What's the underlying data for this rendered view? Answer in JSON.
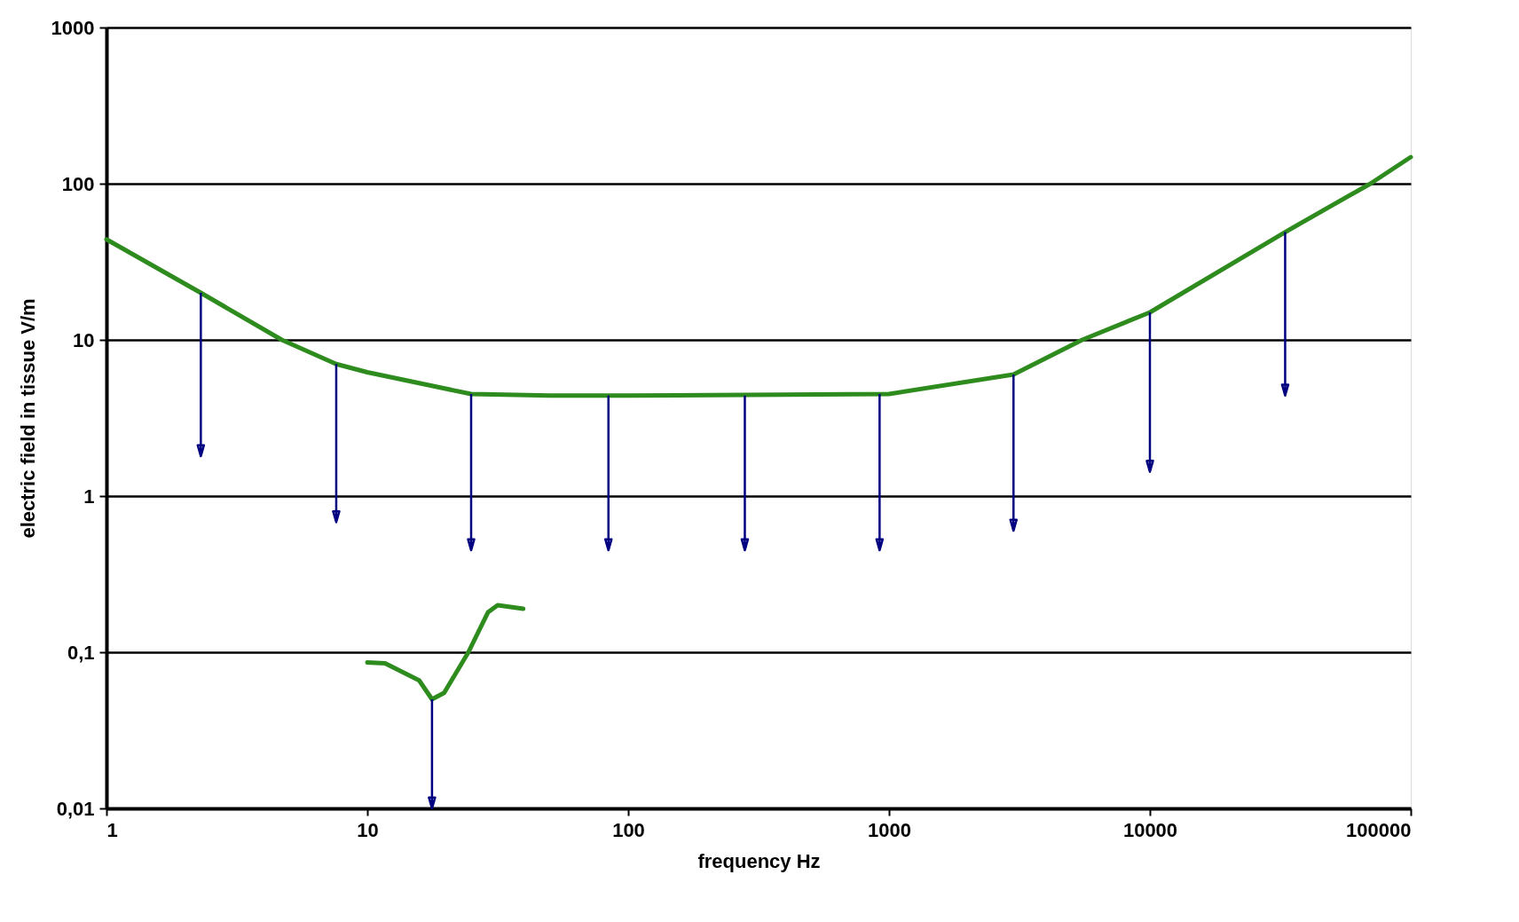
{
  "chart_data": {
    "type": "line",
    "xlabel": "frequency Hz",
    "ylabel": "electric field in tissue V/m",
    "log": "xy",
    "grid": "y",
    "xlim": [
      1,
      100000
    ],
    "xticks": [
      1,
      10,
      100,
      {
        "value": 1000,
        "label": "1000"
      },
      {
        "value": 10000,
        "label": "10000"
      },
      {
        "value": 100000,
        "label": "100000"
      }
    ],
    "ylim": [
      0.01,
      1000
    ],
    "yticks": [
      {
        "value": 0.01,
        "label": "0,01"
      },
      {
        "value": 0.1,
        "label": "0,1"
      },
      1,
      10,
      100,
      {
        "value": 1000,
        "label": "1000"
      }
    ],
    "series": [
      {
        "color": "#2e8b1e",
        "x": [
          1,
          2.3,
          4.7,
          7.6,
          10,
          25,
          50,
          100,
          1000,
          3000,
          5500,
          10000,
          33000,
          70000,
          100000
        ],
        "values": [
          44,
          20,
          10,
          7,
          6.2,
          4.5,
          4.4,
          4.4,
          4.5,
          6,
          10,
          15,
          49,
          100,
          148
        ]
      },
      {
        "color": "#2e8b1e",
        "x": [
          10,
          11.7,
          14.5,
          15.8,
          17.7,
          19.7,
          24.4,
          29,
          31.6,
          39.6
        ],
        "values": [
          0.086,
          0.085,
          0.071,
          0.066,
          0.05,
          0.055,
          0.1,
          0.18,
          0.2,
          0.19
        ]
      },
      {
        "color": "#000080",
        "x": [
          2.3,
          2.3
        ],
        "values": [
          20,
          1.8
        ]
      },
      {
        "color": "#000080",
        "x": [
          7.6,
          7.6
        ],
        "values": [
          7,
          0.68
        ]
      },
      {
        "color": "#000080",
        "x": [
          25,
          25
        ],
        "values": [
          4.5,
          0.45
        ]
      },
      {
        "color": "#000080",
        "x": [
          84,
          84
        ],
        "values": [
          4.4,
          0.45
        ]
      },
      {
        "color": "#000080",
        "x": [
          280,
          280
        ],
        "values": [
          4.4,
          0.45
        ]
      },
      {
        "color": "#000080",
        "x": [
          920,
          920
        ],
        "values": [
          4.5,
          0.45
        ]
      },
      {
        "color": "#000080",
        "x": [
          3000,
          3000
        ],
        "values": [
          6,
          0.6
        ]
      },
      {
        "color": "#000080",
        "x": [
          10000,
          10000
        ],
        "values": [
          15,
          1.43
        ]
      },
      {
        "color": "#000080",
        "x": [
          33000,
          33000
        ],
        "values": [
          49,
          4.4
        ]
      },
      {
        "color": "#000080",
        "x": [
          17.7,
          17.7
        ],
        "values": [
          0.05,
          0.01
        ]
      }
    ]
  }
}
